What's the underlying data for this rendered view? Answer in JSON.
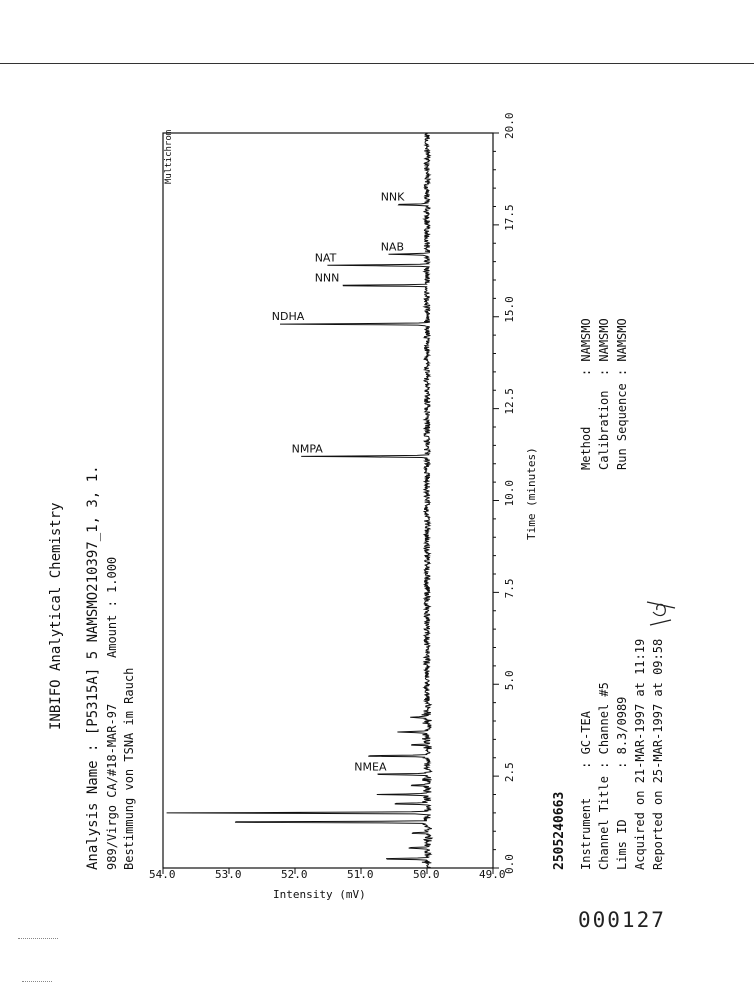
{
  "page": {
    "doc_number": "000127",
    "barcode_number": "2505240663"
  },
  "chart_data": {
    "type": "line",
    "title": "INBIFO  Analytical Chemistry",
    "header_lines": [
      "Analysis Name : [P5315A] 5 NAMSMO210397_1, 3, 1.",
      "989/Virgo CA/#18-MAR-97",
      "Amount : 1.000",
      "Bestimmung von TSNA im Rauch"
    ],
    "corner_label": "Multichrom",
    "xlabel": "Time (minutes)",
    "ylabel": "Intensity (mV)",
    "xlim": [
      0.0,
      20.0
    ],
    "ylim": [
      49.0,
      54.0
    ],
    "x_ticks": [
      "0.0",
      "2.5",
      "5.0",
      "7.5",
      "10.0",
      "12.5",
      "15.0",
      "17.5",
      "20.0"
    ],
    "y_ticks": [
      "54.0",
      "53.0",
      "52.0",
      "51.0",
      "50.0",
      "49.0"
    ],
    "baseline": 50.0,
    "peaks": [
      {
        "t": 0.25,
        "h": 50.75,
        "label": ""
      },
      {
        "t": 0.55,
        "h": 50.25,
        "label": ""
      },
      {
        "t": 0.95,
        "h": 50.3,
        "label": ""
      },
      {
        "t": 1.25,
        "h": 53.4,
        "label": ""
      },
      {
        "t": 1.5,
        "h": 53.95,
        "label": ""
      },
      {
        "t": 1.75,
        "h": 50.6,
        "label": ""
      },
      {
        "t": 2.0,
        "h": 50.75,
        "label": ""
      },
      {
        "t": 2.25,
        "h": 50.3,
        "label": ""
      },
      {
        "t": 2.55,
        "h": 50.95,
        "label": "NMEA"
      },
      {
        "t": 3.05,
        "h": 51.0,
        "label": ""
      },
      {
        "t": 3.35,
        "h": 50.3,
        "label": ""
      },
      {
        "t": 3.7,
        "h": 50.4,
        "label": ""
      },
      {
        "t": 4.1,
        "h": 50.2,
        "label": ""
      },
      {
        "t": 11.2,
        "h": 51.9,
        "label": "NMPA"
      },
      {
        "t": 14.8,
        "h": 52.2,
        "label": "NDHA"
      },
      {
        "t": 15.85,
        "h": 51.55,
        "label": "NNN"
      },
      {
        "t": 16.4,
        "h": 51.55,
        "label": "NAT"
      },
      {
        "t": 16.7,
        "h": 50.55,
        "label": "NAB"
      },
      {
        "t": 18.05,
        "h": 50.55,
        "label": "NNK"
      }
    ]
  },
  "footer": {
    "left": [
      "Instrument    : GC-TEA",
      "Channel Title : Channel #5",
      "Lims ID       : 8.3/0989",
      "Acquired on 21-MAR-1997 at 11:19",
      "Reported on 25-MAR-1997 at 09:58"
    ],
    "right": [
      "Method       : NAMSMO",
      "Calibration  : NAMSMO",
      "Run Sequence : NAMSMO"
    ]
  }
}
